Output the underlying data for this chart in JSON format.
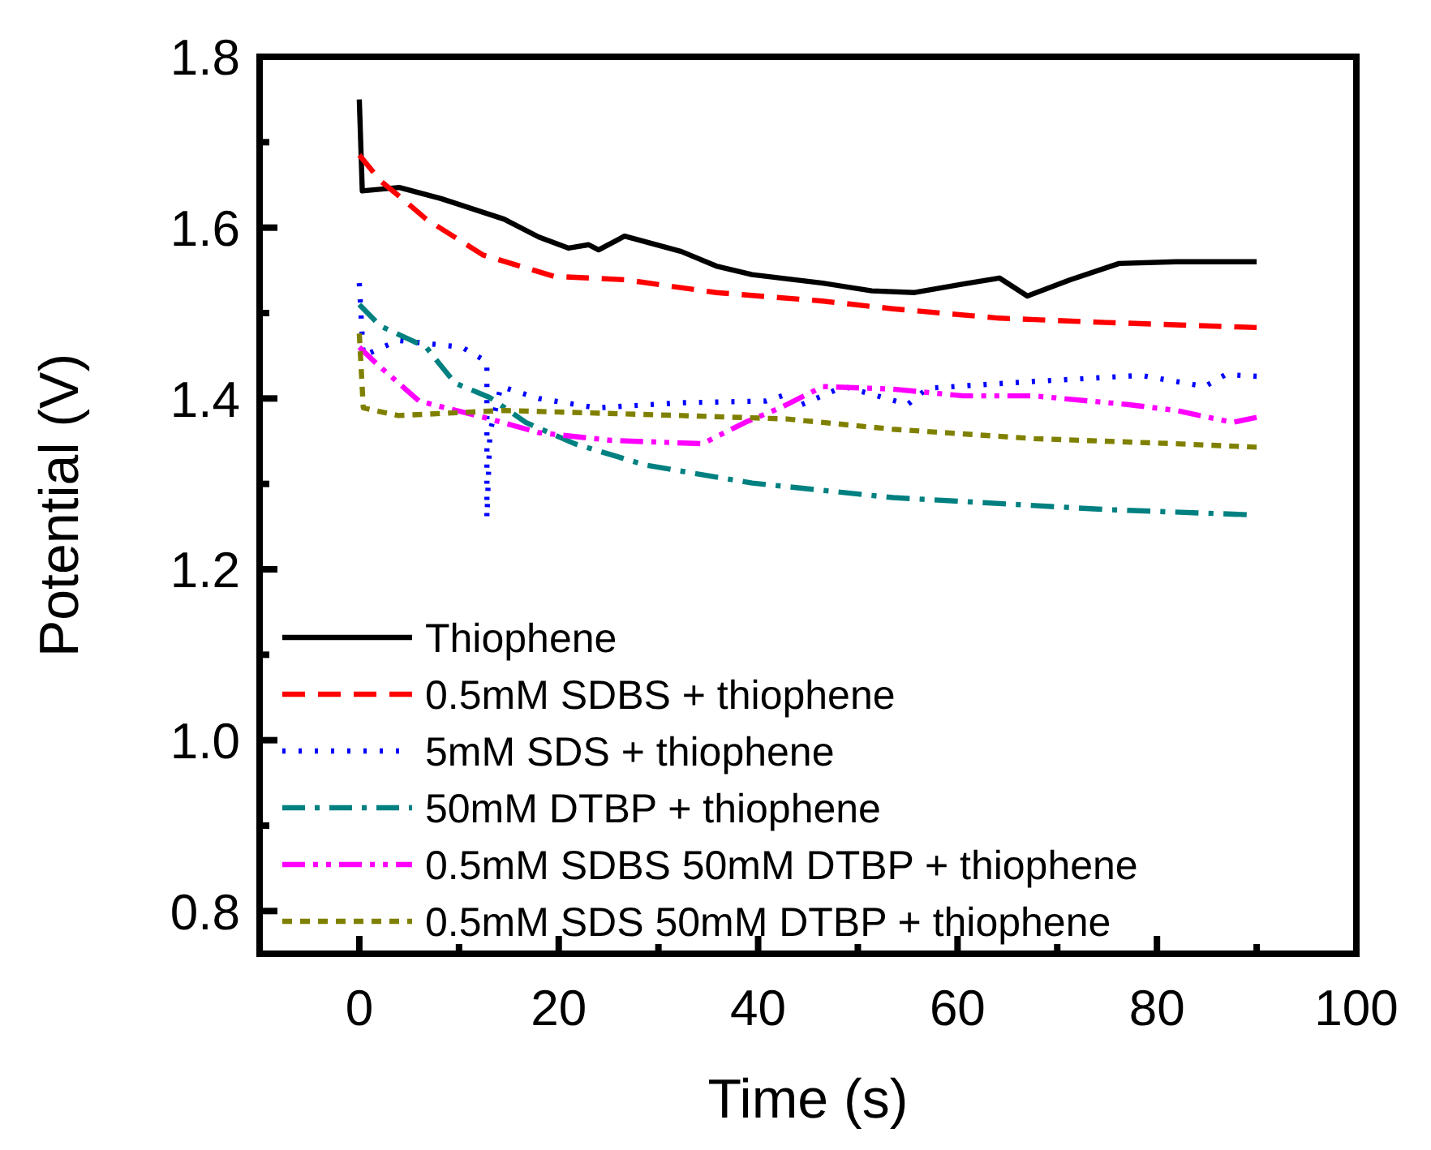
{
  "chart_data": {
    "type": "line",
    "xlabel": "Time (s)",
    "ylabel": "Potential (V)",
    "xlim": [
      -10,
      100
    ],
    "ylim": [
      0.75,
      1.8
    ],
    "xticks": [
      0,
      {
        "value": 10,
        "label": null
      },
      20,
      {
        "value": 30,
        "label": null
      },
      40,
      {
        "value": 50,
        "label": null
      },
      60,
      {
        "value": 70,
        "label": null
      },
      80,
      {
        "value": 90,
        "label": null
      },
      100
    ],
    "yticks": [
      {
        "value": 0.8,
        "label": "0.8"
      },
      {
        "value": 0.9,
        "label": null
      },
      {
        "value": 1.0,
        "label": "1.0"
      },
      {
        "value": 1.1,
        "label": null
      },
      {
        "value": 1.2,
        "label": "1.2"
      },
      {
        "value": 1.3,
        "label": null
      },
      {
        "value": 1.4,
        "label": "1.4"
      },
      {
        "value": 1.5,
        "label": null
      },
      {
        "value": 1.6,
        "label": "1.6"
      },
      {
        "value": 1.7,
        "label": null
      },
      {
        "value": 1.8,
        "label": "1.8"
      }
    ],
    "grid": false,
    "legend": "bottom left",
    "series": [
      {
        "name": "Thiophene",
        "color": "#000000",
        "line_style": "solid",
        "x": [
          0,
          0.3,
          4,
          8.2,
          14.5,
          18,
          21,
          23,
          24,
          26.6,
          32.3,
          35.8,
          39.4,
          46.5,
          51.4,
          55.7,
          60.6,
          64.2,
          67,
          71.3,
          76.2,
          81.9,
          90
        ],
        "values": [
          1.75,
          1.643,
          1.647,
          1.634,
          1.61,
          1.589,
          1.576,
          1.58,
          1.574,
          1.59,
          1.572,
          1.555,
          1.545,
          1.535,
          1.526,
          1.524,
          1.534,
          1.541,
          1.52,
          1.539,
          1.558,
          1.56,
          1.56
        ]
      },
      {
        "name": "0.5mM SDBS + thiophene",
        "color": "#ff0000",
        "line_style": "dashed",
        "x": [
          0,
          2.1,
          4.3,
          6.7,
          12.4,
          19.5,
          26.6,
          35.8,
          46.5,
          53.5,
          64.2,
          74.8,
          90
        ],
        "values": [
          1.685,
          1.655,
          1.634,
          1.61,
          1.568,
          1.543,
          1.539,
          1.524,
          1.514,
          1.505,
          1.494,
          1.489,
          1.483
        ]
      },
      {
        "name": "5mM SDS + thiophene",
        "color": "#0000ff",
        "line_style": "dotted",
        "x": [
          0,
          0.4,
          3.9,
          10.3,
          12.8,
          12.8,
          13.1,
          14.2,
          18,
          23.8,
          32.3,
          40.8,
          42.9,
          43.6,
          48.6,
          55,
          57,
          67.7,
          78.4,
          84.8,
          86.9,
          90
        ],
        "values": [
          1.535,
          1.45,
          1.468,
          1.46,
          1.443,
          1.26,
          1.36,
          1.414,
          1.4,
          1.389,
          1.395,
          1.397,
          1.405,
          1.389,
          1.414,
          1.393,
          1.412,
          1.42,
          1.427,
          1.414,
          1.428,
          1.426
        ]
      },
      {
        "name": "50mM DTBP + thiophene",
        "color": "#008080",
        "line_style": "dashdot",
        "x": [
          0,
          2.1,
          6.7,
          9.6,
          13.1,
          16.7,
          21.6,
          28.7,
          39.4,
          53.5,
          64.2,
          74.8,
          89
        ],
        "values": [
          1.51,
          1.485,
          1.46,
          1.418,
          1.401,
          1.372,
          1.347,
          1.322,
          1.301,
          1.284,
          1.277,
          1.27,
          1.264
        ]
      },
      {
        "name": "0.5mM SDBS 50mM DTBP + thiophene",
        "color": "#ff00ff",
        "line_style": "dashdotdot",
        "x": [
          0,
          1.8,
          6,
          13.1,
          18,
          25.2,
          34.4,
          38.7,
          42.2,
          46.5,
          53.5,
          60.6,
          67.7,
          77,
          81.9,
          87.6,
          90
        ],
        "values": [
          1.46,
          1.44,
          1.397,
          1.376,
          1.36,
          1.351,
          1.347,
          1.372,
          1.389,
          1.414,
          1.411,
          1.403,
          1.403,
          1.393,
          1.386,
          1.372,
          1.378
        ]
      },
      {
        "name": "0.5mM SDS 50mM DTBP + thiophene",
        "color": "#808000",
        "line_style": "shortdash",
        "x": [
          0,
          0.4,
          3.9,
          14.5,
          32.3,
          42.9,
          53.5,
          67.7,
          81.9,
          90
        ],
        "values": [
          1.476,
          1.389,
          1.38,
          1.386,
          1.38,
          1.376,
          1.364,
          1.353,
          1.347,
          1.343
        ]
      }
    ]
  }
}
